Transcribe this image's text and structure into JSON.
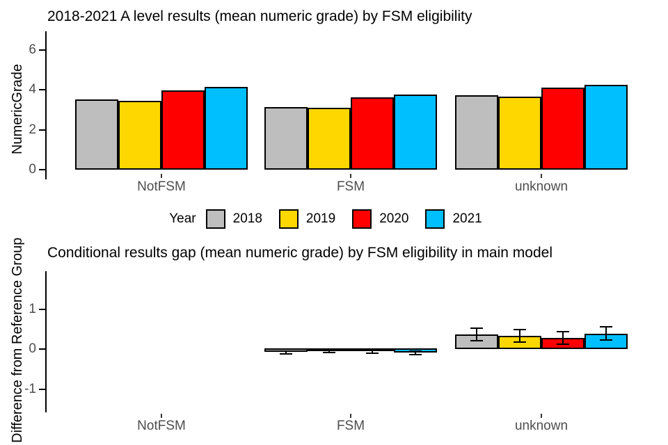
{
  "legend": {
    "title": "Year",
    "items": [
      {
        "label": "2018",
        "color": "#BEBEBE"
      },
      {
        "label": "2019",
        "color": "#FFD700"
      },
      {
        "label": "2020",
        "color": "#FF0000"
      },
      {
        "label": "2021",
        "color": "#00BFFF"
      }
    ]
  },
  "colors": {
    "bar_border": "#000000",
    "axis_line": "#000000",
    "tick_label_text": "#4D4D4D",
    "title_text": "#000000",
    "background": "#FFFFFF"
  },
  "chart_data": [
    {
      "type": "bar",
      "title": "2018-2021 A level results (mean numeric grade) by FSM eligibility",
      "ylabel": "NumericGrade",
      "xlabel": "",
      "categories": [
        "NotFSM",
        "FSM",
        "unknown"
      ],
      "series": [
        {
          "name": "2018",
          "color": "#BEBEBE",
          "values": [
            3.52,
            3.14,
            3.73
          ]
        },
        {
          "name": "2019",
          "color": "#FFD700",
          "values": [
            3.46,
            3.1,
            3.65
          ]
        },
        {
          "name": "2020",
          "color": "#FF0000",
          "values": [
            3.98,
            3.64,
            4.12
          ]
        },
        {
          "name": "2021",
          "color": "#00BFFF",
          "values": [
            4.15,
            3.77,
            4.25
          ]
        }
      ],
      "yticks": [
        0,
        2,
        4,
        6
      ],
      "ylim": [
        0,
        7
      ],
      "grid": false,
      "legend_position": "bottom-shared"
    },
    {
      "type": "bar",
      "title": "Conditional results gap (mean numeric grade) by FSM eligibility in main model",
      "ylabel": "Difference from Reference Group",
      "xlabel": "",
      "categories": [
        "NotFSM",
        "FSM",
        "unknown"
      ],
      "series": [
        {
          "name": "2018",
          "color": "#BEBEBE",
          "values": [
            0,
            -0.09,
            0.37
          ],
          "ci_low": [
            null,
            -0.13,
            0.21
          ],
          "ci_high": [
            null,
            -0.05,
            0.53
          ]
        },
        {
          "name": "2019",
          "color": "#FFD700",
          "values": [
            0,
            -0.05,
            0.33
          ],
          "ci_low": [
            null,
            -0.09,
            0.17
          ],
          "ci_high": [
            null,
            -0.01,
            0.49
          ]
        },
        {
          "name": "2020",
          "color": "#FF0000",
          "values": [
            0,
            -0.06,
            0.28
          ],
          "ci_low": [
            null,
            -0.1,
            0.13
          ],
          "ci_high": [
            null,
            -0.02,
            0.43
          ]
        },
        {
          "name": "2021",
          "color": "#00BFFF",
          "values": [
            0,
            -0.1,
            0.38
          ],
          "ci_low": [
            null,
            -0.14,
            0.23
          ],
          "ci_high": [
            null,
            -0.06,
            0.55
          ]
        }
      ],
      "yticks": [
        1,
        0,
        -1
      ],
      "ylim": [
        -1.75,
        1.9
      ],
      "grid": false,
      "error_bars": true,
      "legend_position": "none"
    }
  ]
}
